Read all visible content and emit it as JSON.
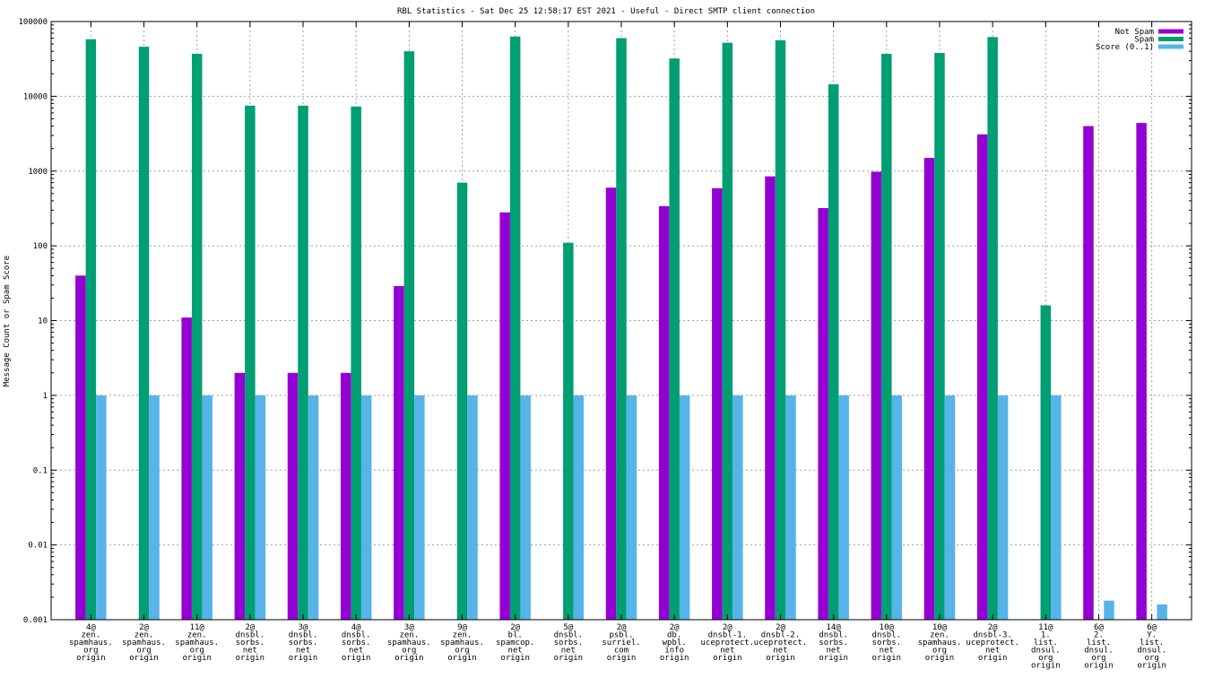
{
  "chart_data": {
    "type": "bar",
    "title": "RBL Statistics - Sat Dec 25 12:58:17 EST 2021 - Useful - Direct SMTP client connection",
    "xlabel": "",
    "ylabel": "Message Count or Spam Score",
    "yscale": "log",
    "ylim": [
      0.001,
      100000
    ],
    "yticks": [
      "0.001",
      "0.01",
      "0.1",
      "1",
      "10",
      "100",
      "1000",
      "10000",
      "100000"
    ],
    "grid": true,
    "legend_position": "top-right",
    "categories": [
      [
        "4@",
        "zen.",
        "spamhaus.",
        "org",
        "origin"
      ],
      [
        "2@",
        "zen.",
        "spamhaus.",
        "org",
        "origin"
      ],
      [
        "11@",
        "zen.",
        "spamhaus.",
        "org",
        "origin"
      ],
      [
        "2@",
        "dnsbl.",
        "sorbs.",
        "net",
        "origin"
      ],
      [
        "3@",
        "dnsbl.",
        "sorbs.",
        "net",
        "origin"
      ],
      [
        "4@",
        "dnsbl.",
        "sorbs.",
        "net",
        "origin"
      ],
      [
        "3@",
        "zen.",
        "spamhaus.",
        "org",
        "origin"
      ],
      [
        "9@",
        "zen.",
        "spamhaus.",
        "org",
        "origin"
      ],
      [
        "2@",
        "bl.",
        "spamcop.",
        "net",
        "origin"
      ],
      [
        "5@",
        "dnsbl.",
        "sorbs.",
        "net",
        "origin"
      ],
      [
        "2@",
        "psbl.",
        "surriel.",
        "com",
        "origin"
      ],
      [
        "2@",
        "db.",
        "wpbl.",
        "info",
        "origin"
      ],
      [
        "2@",
        "dnsbl-1.",
        "uceprotect.",
        "net",
        "origin"
      ],
      [
        "2@",
        "dnsbl-2.",
        "uceprotect.",
        "net",
        "origin"
      ],
      [
        "14@",
        "dnsbl.",
        "sorbs.",
        "net",
        "origin"
      ],
      [
        "10@",
        "dnsbl.",
        "sorbs.",
        "net",
        "origin"
      ],
      [
        "10@",
        "zen.",
        "spamhaus.",
        "org",
        "origin"
      ],
      [
        "2@",
        "dnsbl-3.",
        "uceprotect.",
        "net",
        "origin"
      ],
      [
        "11@",
        "1.",
        "list.",
        "dnsul.",
        "org",
        "origin"
      ],
      [
        "6@",
        "2.",
        "list.",
        "dnsul.",
        "org",
        "origin"
      ],
      [
        "6@",
        "Y.",
        "list.",
        "dnsul.",
        "org",
        "origin"
      ]
    ],
    "series": [
      {
        "name": "Not Spam",
        "color": "#9400d3",
        "values": [
          40,
          null,
          11,
          2,
          2,
          2,
          29,
          null,
          280,
          null,
          600,
          340,
          590,
          850,
          320,
          980,
          1500,
          3100,
          null,
          4000,
          4400
        ]
      },
      {
        "name": "Spam",
        "color": "#009e73",
        "values": [
          58000,
          46000,
          37000,
          7500,
          7500,
          7300,
          40000,
          700,
          63000,
          110,
          60000,
          32000,
          52000,
          56000,
          14500,
          37000,
          38000,
          62000,
          16,
          null,
          null
        ]
      },
      {
        "name": "Score (0..1)",
        "color": "#56b4e9",
        "values": [
          1,
          1,
          1,
          1,
          1,
          1,
          1,
          1,
          1,
          1,
          1,
          1,
          1,
          1,
          1,
          1,
          1,
          1,
          1,
          0.0018,
          0.0016
        ]
      }
    ]
  }
}
